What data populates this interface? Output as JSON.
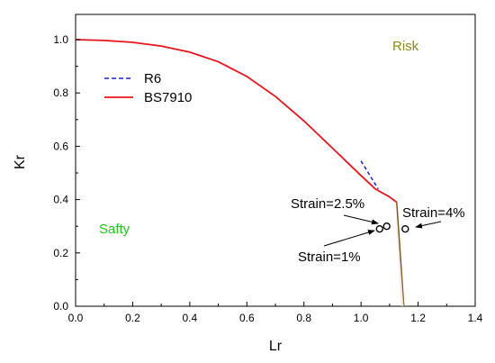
{
  "chart_data": {
    "type": "line",
    "xlabel": "Lr",
    "ylabel": "Kr",
    "xlim": [
      0,
      1.4
    ],
    "ylim": [
      0,
      1.1
    ],
    "xticks": [
      "0.0",
      "0.2",
      "0.4",
      "0.6",
      "0.8",
      "1.0",
      "1.2",
      "1.4"
    ],
    "yticks": [
      "0.0",
      "0.2",
      "0.4",
      "0.6",
      "0.8",
      "1.0"
    ],
    "grid": false,
    "legend": "upper-left",
    "series": [
      {
        "name": "R6",
        "style": "dashed",
        "color": "#1f1fd0",
        "x": [
          1.0,
          1.02,
          1.04,
          1.06
        ],
        "y": [
          0.545,
          0.51,
          0.475,
          0.44
        ]
      },
      {
        "name": "BS7910",
        "style": "solid",
        "color": "#e8141c",
        "x": [
          0,
          0.1,
          0.2,
          0.3,
          0.4,
          0.5,
          0.6,
          0.7,
          0.8,
          0.9,
          1.0,
          1.05,
          1.1,
          1.125
        ],
        "y": [
          1.0,
          0.997,
          0.99,
          0.976,
          0.953,
          0.917,
          0.862,
          0.787,
          0.695,
          0.593,
          0.49,
          0.44,
          0.41,
          0.39
        ]
      }
    ],
    "cutoff_line": {
      "color": "#7a5a1a",
      "x": [
        1.125,
        1.15
      ],
      "y": [
        0.39,
        0.0
      ]
    },
    "points": [
      {
        "label": "Strain=1%",
        "x": 1.065,
        "y": 0.29
      },
      {
        "label": "Strain=2.5%",
        "x": 1.09,
        "y": 0.3
      },
      {
        "label": "Strain=4%",
        "x": 1.155,
        "y": 0.29
      }
    ],
    "region_labels": [
      {
        "text": "Risk",
        "color": "#8b8b1a"
      },
      {
        "text": "Safty",
        "color": "#1ec81e"
      }
    ]
  }
}
